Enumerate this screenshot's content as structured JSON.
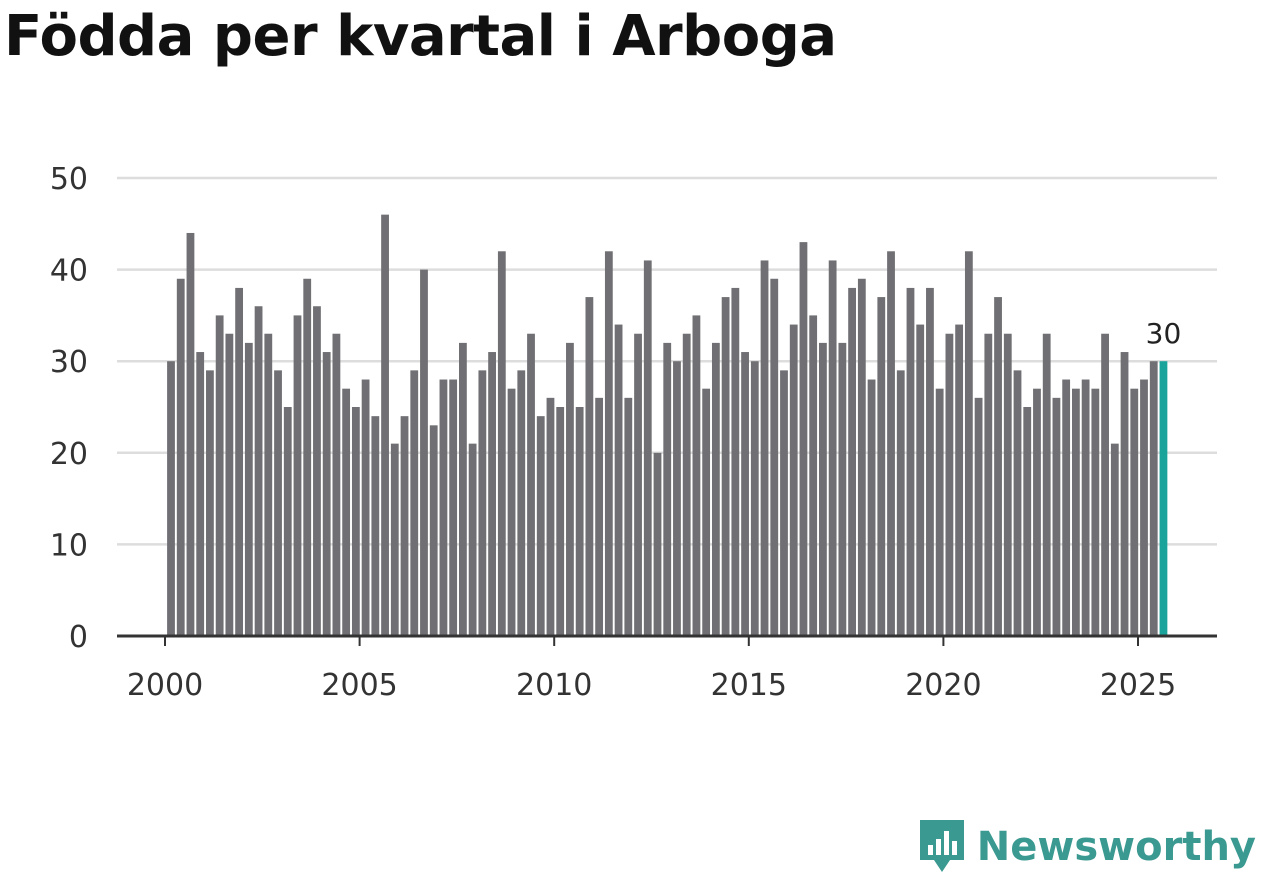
{
  "title": "Födda per kvartal i Arboga",
  "brand": {
    "name": "Newsworthy",
    "icon": "newsworthy-logo-icon",
    "color": "#3a9990"
  },
  "colors": {
    "bar": "#707074",
    "highlight": "#1aa39a",
    "grid": "#dddddd",
    "axis": "#333333"
  },
  "chart_data": {
    "type": "bar",
    "title": "Födda per kvartal i Arboga",
    "xlabel": "",
    "ylabel": "",
    "ylim": [
      0,
      50
    ],
    "yticks": [
      "0",
      "10",
      "20",
      "30",
      "40",
      "50"
    ],
    "xticks": [
      "2000",
      "2005",
      "2010",
      "2015",
      "2020",
      "2025"
    ],
    "first_quarter": "2000 Q1",
    "values": [
      30,
      39,
      44,
      31,
      29,
      35,
      33,
      38,
      32,
      36,
      33,
      29,
      25,
      35,
      39,
      36,
      31,
      33,
      27,
      25,
      28,
      24,
      46,
      21,
      24,
      29,
      40,
      23,
      28,
      28,
      32,
      21,
      29,
      31,
      42,
      27,
      29,
      33,
      24,
      26,
      25,
      32,
      25,
      37,
      26,
      42,
      34,
      26,
      33,
      41,
      20,
      32,
      30,
      33,
      35,
      27,
      32,
      37,
      38,
      31,
      30,
      41,
      39,
      29,
      34,
      43,
      35,
      32,
      41,
      32,
      38,
      39,
      28,
      37,
      42,
      29,
      38,
      34,
      38,
      27,
      33,
      34,
      42,
      26,
      33,
      37,
      33,
      29,
      25,
      27,
      33,
      26,
      28,
      27,
      28,
      27,
      33,
      21,
      31,
      27,
      28,
      30,
      30
    ],
    "highlight_index": 102,
    "highlight_label": "30"
  }
}
